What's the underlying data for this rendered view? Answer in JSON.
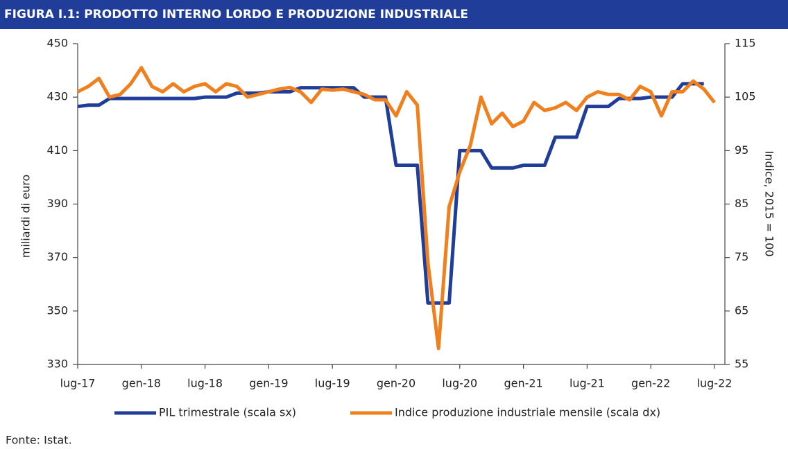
{
  "chart_data": {
    "type": "line",
    "title": "FIGURA I.1: PRODOTTO INTERNO LORDO E PRODUZIONE INDUSTRIALE",
    "y_label": "miliardi di euro",
    "y2_label": "Indice, 2015 = 100",
    "source": "Fonte: Istat.",
    "categories": [
      "lug-17",
      null,
      null,
      null,
      null,
      null,
      "gen-18",
      null,
      null,
      null,
      null,
      null,
      "lug-18",
      null,
      null,
      null,
      null,
      null,
      "gen-19",
      null,
      null,
      null,
      null,
      null,
      "lug-19",
      null,
      null,
      null,
      null,
      null,
      "gen-20",
      null,
      null,
      null,
      null,
      null,
      "lug-20",
      null,
      null,
      null,
      null,
      null,
      "gen-21",
      null,
      null,
      null,
      null,
      null,
      "lug-21",
      null,
      null,
      null,
      null,
      null,
      "gen-22",
      null,
      null,
      null,
      null,
      null,
      "lug-22"
    ],
    "series": [
      {
        "name": "PIL trimestrale (scala sx)",
        "color": "#1f3d99",
        "axis": "y",
        "values": [
          426.5,
          427,
          427,
          429.5,
          429.5,
          429.5,
          429.5,
          429.5,
          429.5,
          429.5,
          429.5,
          429.5,
          430,
          430,
          430,
          431.5,
          431.5,
          431.5,
          432,
          432,
          432,
          433.5,
          433.5,
          433.5,
          433.5,
          433.5,
          433.5,
          430,
          430,
          430,
          404.5,
          404.5,
          404.5,
          353,
          353,
          353,
          410,
          410,
          410,
          403.5,
          403.5,
          403.5,
          404.5,
          404.5,
          404.5,
          415,
          415,
          415,
          426.5,
          426.5,
          426.5,
          429.5,
          429.5,
          429.5,
          430,
          430,
          430,
          435,
          435,
          435,
          null
        ]
      },
      {
        "name": "Indice produzione industriale mensile (scala dx)",
        "color": "#f07f1e",
        "axis": "y2",
        "values": [
          106,
          107,
          108.5,
          105,
          105.5,
          107.5,
          110.5,
          107,
          106,
          107.5,
          106,
          107,
          107.5,
          106,
          107.5,
          107,
          105,
          105.5,
          106,
          106.5,
          106.8,
          106,
          104,
          106.5,
          106.3,
          106.5,
          106,
          105.5,
          104.5,
          104.5,
          101.5,
          106,
          103.5,
          74,
          58,
          84.5,
          91,
          96,
          105,
          100,
          102,
          99.5,
          100.5,
          104,
          102.5,
          103,
          104,
          102.5,
          105,
          106,
          105.5,
          105.5,
          104.5,
          107,
          106,
          101.5,
          106,
          106,
          108,
          106.5,
          104
        ]
      }
    ],
    "ylim": [
      330,
      450
    ],
    "yticks": [
      330,
      350,
      370,
      390,
      410,
      430,
      450
    ],
    "y2lim": [
      55,
      115
    ],
    "y2ticks": [
      55,
      65,
      75,
      85,
      95,
      105,
      115
    ]
  }
}
